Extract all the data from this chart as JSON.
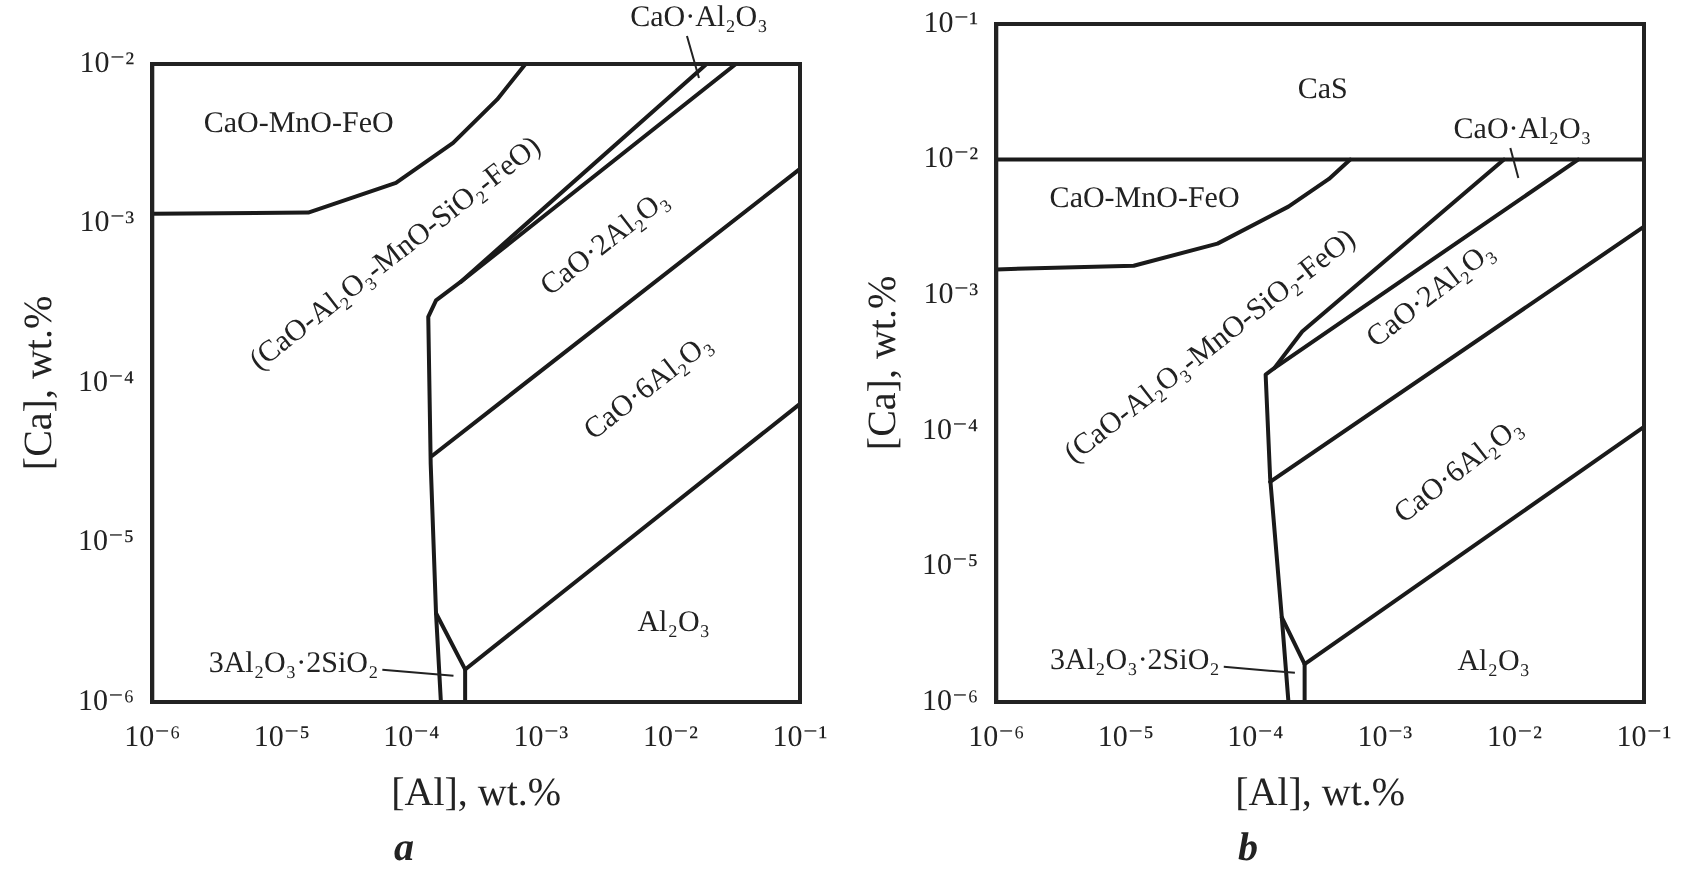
{
  "chart_data": [
    {
      "type": "line",
      "title": "a",
      "xlabel": "[Al], wt.%",
      "ylabel": "[Ca], wt.%",
      "log": "xy",
      "grid": false,
      "legend": false,
      "marker": "none",
      "line_style": "solid",
      "xlim": [
        1e-06,
        0.1
      ],
      "ylim": [
        1e-06,
        0.01
      ],
      "xticks": [
        {
          "value": 1e-06,
          "label": "10⁻⁶"
        },
        {
          "value": 1e-05,
          "label": "10⁻⁵"
        },
        {
          "value": 0.0001,
          "label": "10⁻⁴"
        },
        {
          "value": 0.001,
          "label": "10⁻³"
        },
        {
          "value": 0.01,
          "label": "10⁻²"
        },
        {
          "value": 0.1,
          "label": "10⁻¹"
        }
      ],
      "yticks": [
        {
          "value": 1e-06,
          "label": "10⁻⁶"
        },
        {
          "value": 1e-05,
          "label": "10⁻⁵"
        },
        {
          "value": 0.0001,
          "label": "10⁻⁴"
        },
        {
          "value": 0.001,
          "label": "10⁻³"
        },
        {
          "value": 0.01,
          "label": "10⁻²"
        }
      ],
      "series": [
        {
          "color": "#1a1a1a",
          "x": [
            1e-06,
            1.6e-05,
            7.6e-05,
            0.00021,
            0.00046,
            0.00076
          ],
          "values": [
            0.00115,
            0.00117,
            0.0018,
            0.0032,
            0.006,
            0.01
          ]
        },
        {
          "color": "#1a1a1a",
          "x": [
            0.000169,
            0.000155,
            0.000141,
            0.000135,
            0.000155,
            0.00024,
            0.019
          ],
          "values": [
            1e-06,
            3.6e-06,
            3.1e-05,
            0.00026,
            0.00033,
            0.00043,
            0.01
          ]
        },
        {
          "color": "#1a1a1a",
          "x": [
            0.00024,
            0.032
          ],
          "values": [
            0.00043,
            0.01
          ]
        },
        {
          "color": "#1a1a1a",
          "x": [
            0.000145,
            0.1
          ],
          "values": [
            3.5e-05,
            0.0022
          ]
        },
        {
          "color": "#1a1a1a",
          "x": [
            0.000155,
            0.00026,
            0.1
          ],
          "values": [
            3.6e-06,
            1.6e-06,
            7.4e-05
          ]
        },
        {
          "color": "#1a1a1a",
          "x": [
            0.00026,
            0.00026
          ],
          "values": [
            1e-06,
            1.6e-06
          ]
        }
      ],
      "annotations": [
        "CaO-MnO-FeO",
        "(CaO-Al₂O₃-MnO-SiO₂-FeO)",
        "CaO·2Al₂O₃",
        "CaO·6Al₂O₃",
        "Al₂O₃",
        "CaO·Al₂O₃",
        "3Al₂O₃·2SiO₂"
      ]
    },
    {
      "type": "line",
      "title": "b",
      "xlabel": "[Al], wt.%",
      "ylabel": "[Ca], wt.%",
      "log": "xy",
      "grid": false,
      "legend": false,
      "marker": "none",
      "line_style": "solid",
      "xlim": [
        1e-06,
        0.1
      ],
      "ylim": [
        1e-06,
        0.1
      ],
      "xticks": [
        {
          "value": 1e-06,
          "label": "10⁻⁶"
        },
        {
          "value": 1e-05,
          "label": "10⁻⁵"
        },
        {
          "value": 0.0001,
          "label": "10⁻⁴"
        },
        {
          "value": 0.001,
          "label": "10⁻³"
        },
        {
          "value": 0.01,
          "label": "10⁻²"
        },
        {
          "value": 0.1,
          "label": "10⁻¹"
        }
      ],
      "yticks": [
        {
          "value": 1e-06,
          "label": "10⁻⁶"
        },
        {
          "value": 1e-05,
          "label": "10⁻⁵"
        },
        {
          "value": 0.0001,
          "label": "10⁻⁴"
        },
        {
          "value": 0.001,
          "label": "10⁻³"
        },
        {
          "value": 0.01,
          "label": "10⁻²"
        },
        {
          "value": 0.1,
          "label": "10⁻¹"
        }
      ],
      "series": [
        {
          "color": "#1a1a1a",
          "x": [
            1e-06,
            0.1
          ],
          "values": [
            0.01,
            0.01
          ]
        },
        {
          "color": "#1a1a1a",
          "x": [
            1e-06,
            1.15e-05,
            5.1e-05,
            0.00018,
            0.00037,
            0.00054
          ],
          "values": [
            0.00155,
            0.00165,
            0.0024,
            0.0045,
            0.0072,
            0.01
          ]
        },
        {
          "color": "#1a1a1a",
          "x": [
            0.00018,
            0.00016,
            0.00013,
            0.00012,
            0.00014,
            0.00023,
            0.0083
          ],
          "values": [
            1e-06,
            4.2e-06,
            4.5e-05,
            0.00026,
            0.00029,
            0.00054,
            0.01
          ]
        },
        {
          "color": "#1a1a1a",
          "x": [
            0.00014,
            0.031
          ],
          "values": [
            0.00029,
            0.01
          ]
        },
        {
          "color": "#1a1a1a",
          "x": [
            0.00013,
            0.1
          ],
          "values": [
            4.2e-05,
            0.0032
          ]
        },
        {
          "color": "#1a1a1a",
          "x": [
            0.00016,
            0.00024,
            0.1
          ],
          "values": [
            4.2e-06,
            1.9e-06,
            0.000107
          ]
        },
        {
          "color": "#1a1a1a",
          "x": [
            0.00024,
            0.00024
          ],
          "values": [
            1e-06,
            1.9e-06
          ]
        }
      ],
      "annotations": [
        "CaS",
        "CaO-MnO-FeO",
        "(CaO-Al₂O₃-MnO-SiO₂-FeO)",
        "CaO·2Al₂O₃",
        "CaO·6Al₂O₃",
        "Al₂O₃",
        "CaO·Al₂O₃",
        "3Al₂O₃·2SiO₂"
      ]
    }
  ]
}
